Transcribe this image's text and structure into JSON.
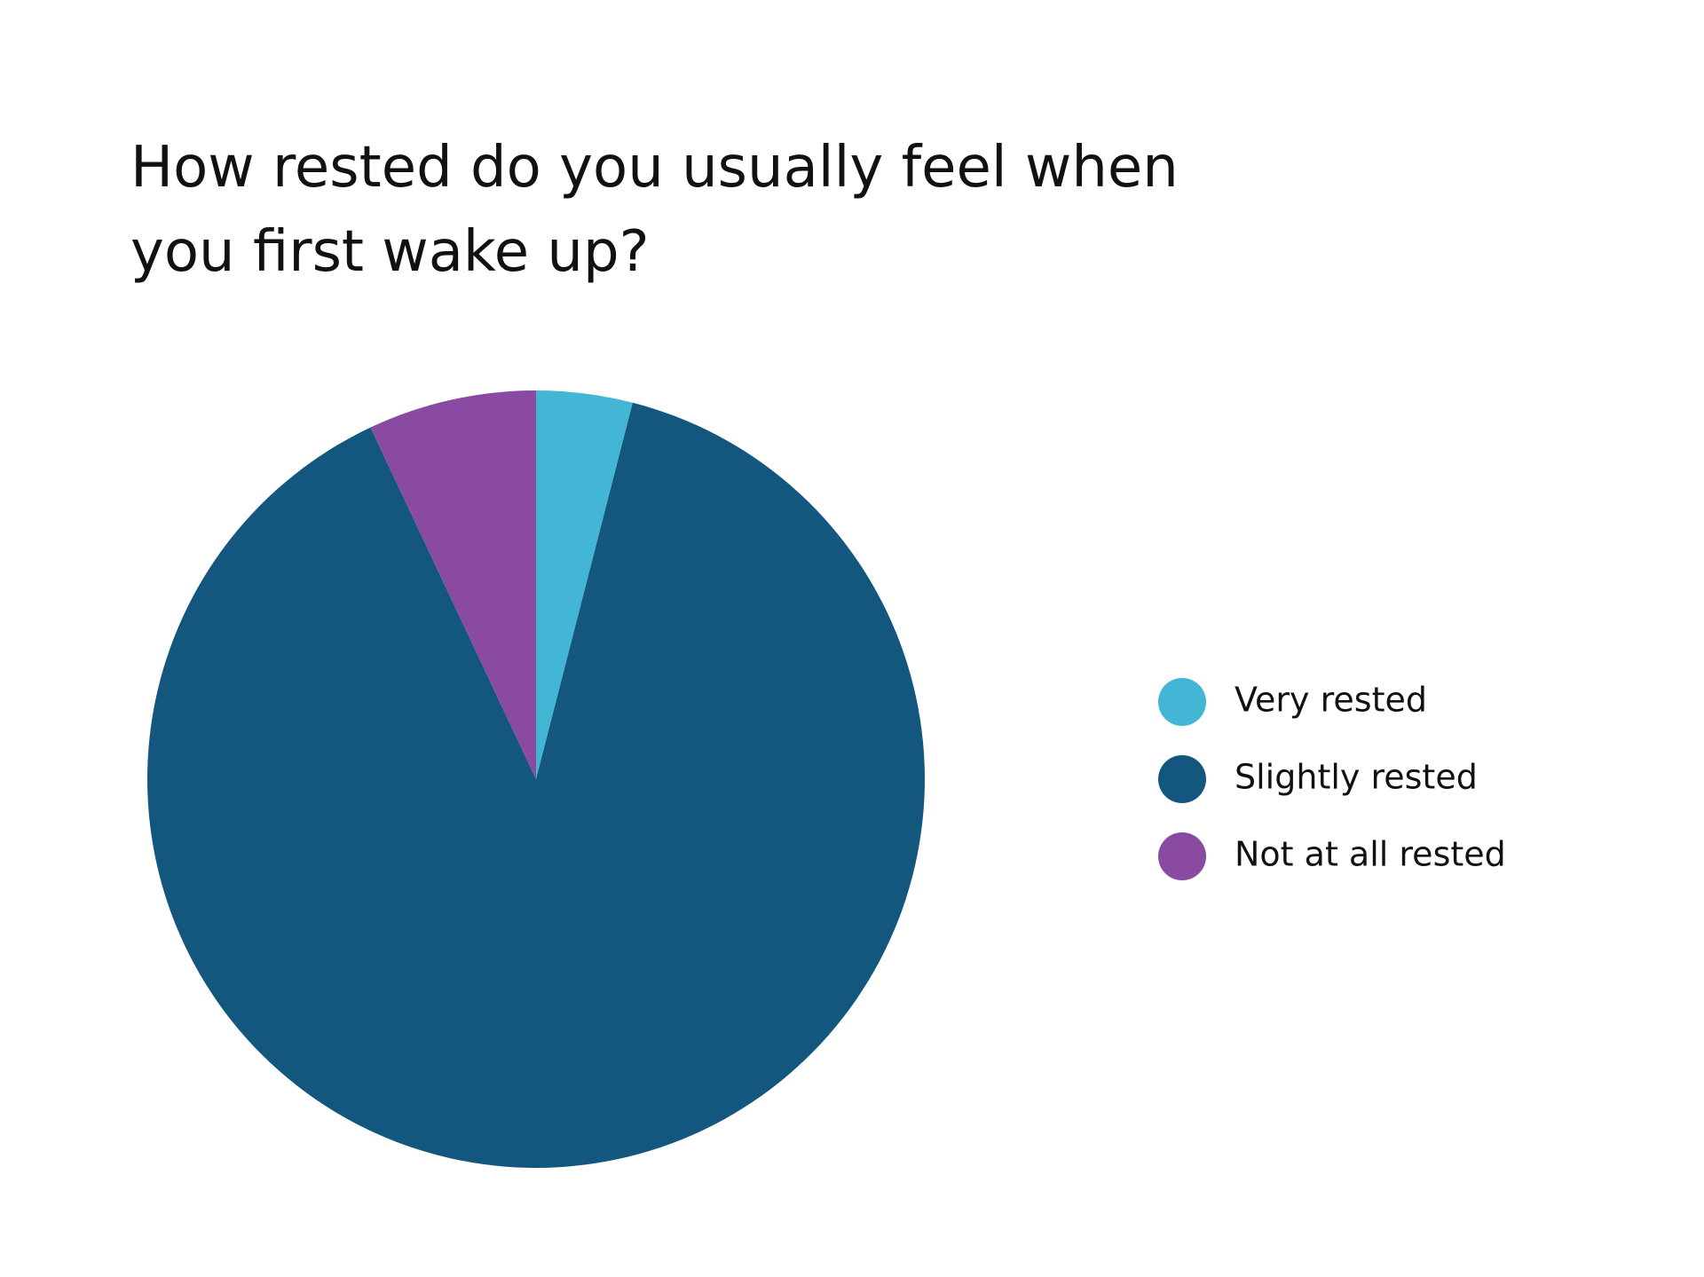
{
  "chart_data": {
    "type": "pie",
    "title": [
      "How rested do you usually feel when",
      "you first wake up?"
    ],
    "categories": [
      "Very rested",
      "Slightly rested",
      "Not at all rested"
    ],
    "values": [
      4,
      89,
      7
    ],
    "colors": [
      "#42b6d4",
      "#13577f",
      "#8a4aa1"
    ]
  }
}
